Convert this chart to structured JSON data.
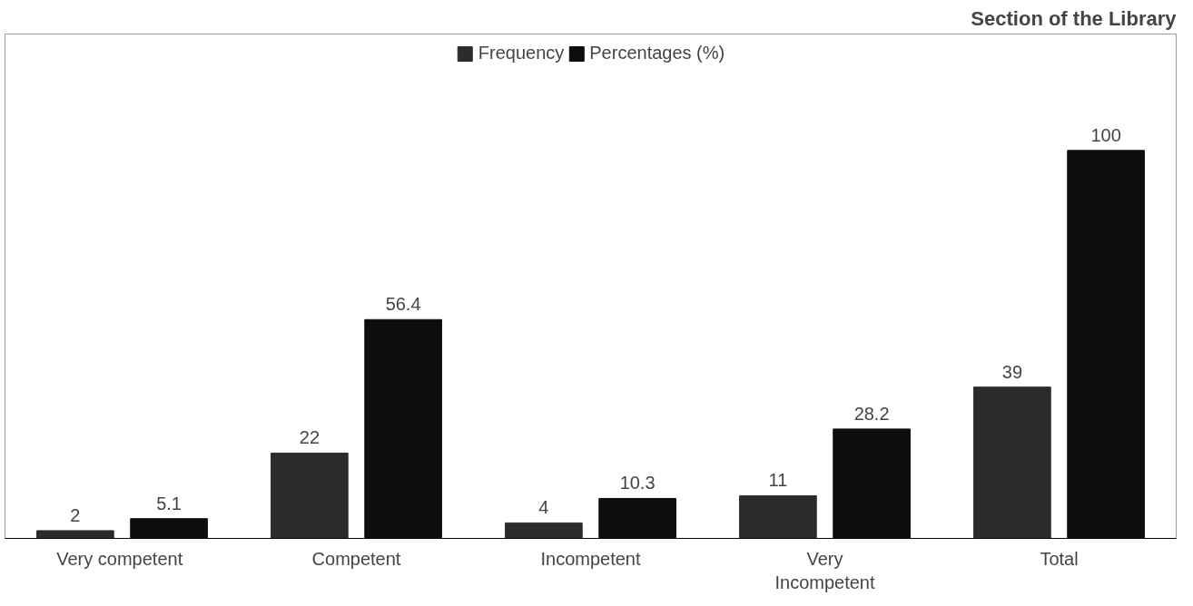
{
  "chart_data": {
    "type": "bar",
    "title": "Section of the Library",
    "categories": [
      "Very  competent",
      "Competent",
      "Incompetent",
      "Very\nIncompetent",
      "Total"
    ],
    "series": [
      {
        "name": "Frequency",
        "color": "#2b2b2b",
        "values": [
          2,
          22,
          4,
          11,
          39
        ]
      },
      {
        "name": "Percentages (%)",
        "color": "#0d0d0d",
        "values": [
          5.1,
          56.4,
          10.3,
          28.2,
          100
        ]
      }
    ],
    "data_labels": true,
    "legend": "top",
    "grid": false
  }
}
